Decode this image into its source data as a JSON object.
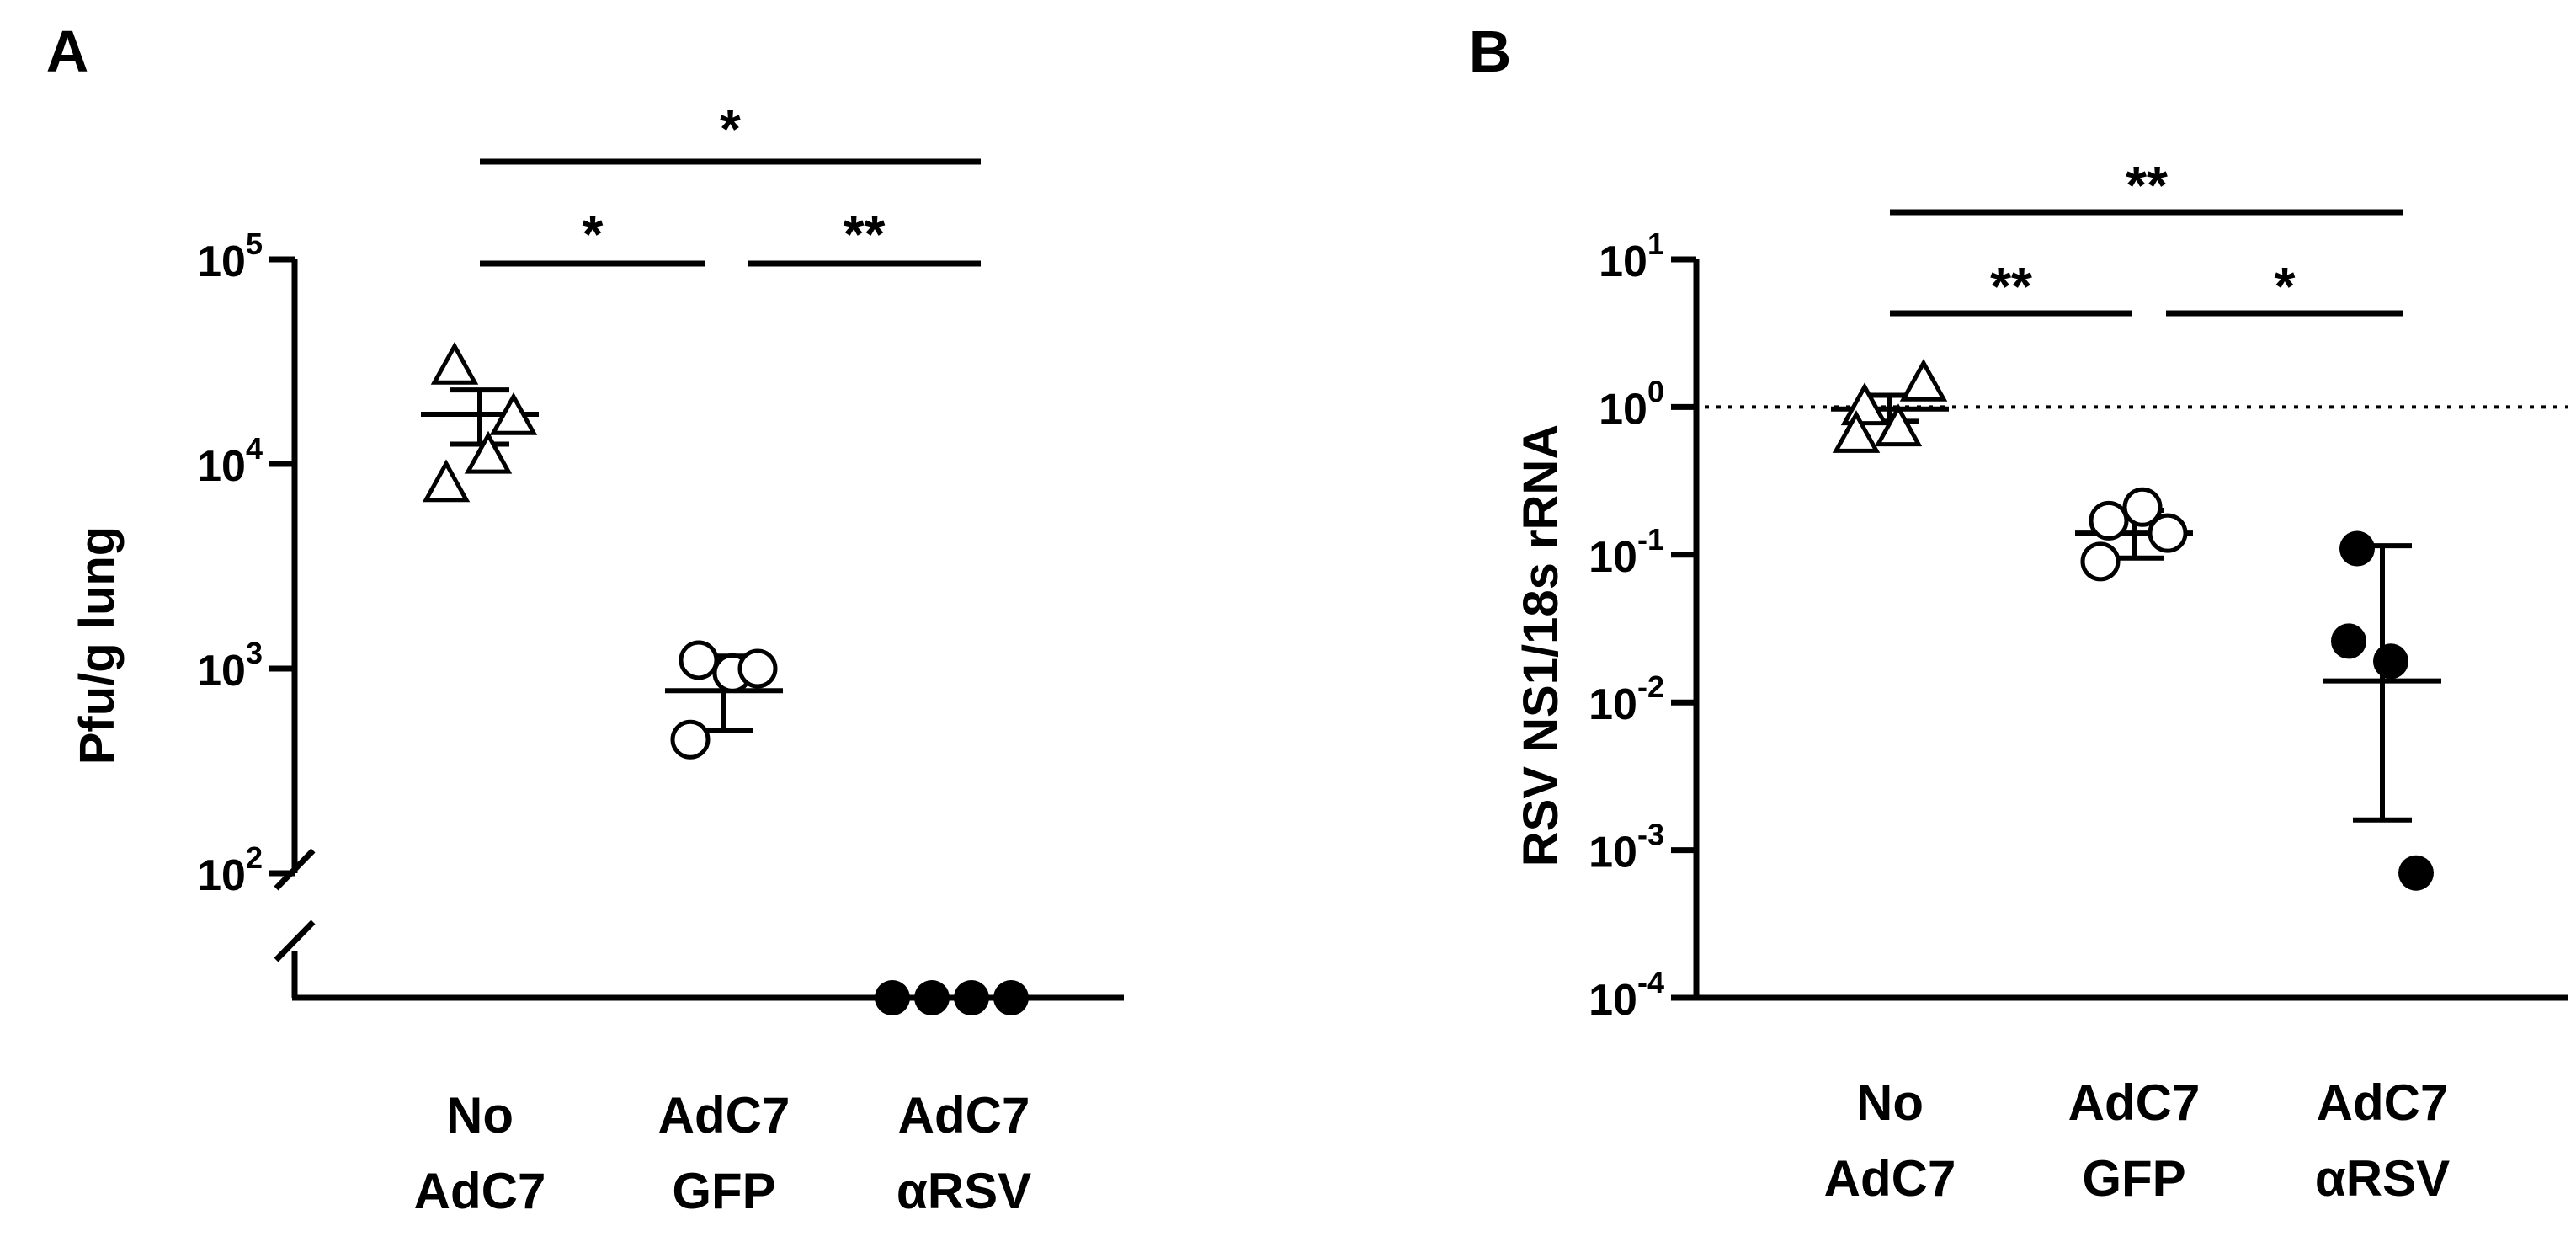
{
  "chart_data": [
    {
      "panel_label": "A",
      "type": "scatter",
      "ylabel": "Pfu/g lung",
      "yscale": "log",
      "ylim": [
        100,
        100000
      ],
      "axis_break": true,
      "y_ticks": [
        {
          "base": "10",
          "exp": "2",
          "value": 100
        },
        {
          "base": "10",
          "exp": "3",
          "value": 1000
        },
        {
          "base": "10",
          "exp": "4",
          "value": 10000
        },
        {
          "base": "10",
          "exp": "5",
          "value": 100000
        }
      ],
      "categories": [
        {
          "line1": "No",
          "line2": "AdC7"
        },
        {
          "line1": "AdC7",
          "line2": "GFP"
        },
        {
          "line1": "AdC7",
          "line2": "αRSV"
        }
      ],
      "groups": [
        {
          "marker": "open-triangle",
          "points": [
            30000,
            8000,
            11000,
            17000
          ],
          "mean": 17500,
          "err_low": 12500,
          "err_high": 23000
        },
        {
          "marker": "open-circle",
          "points": [
            1100,
            450,
            950,
            1000
          ],
          "mean": 780,
          "err_low": 500,
          "err_high": 1150
        },
        {
          "marker": "filled-circle",
          "below_break": true,
          "points": [
            null,
            null,
            null,
            null
          ]
        }
      ],
      "significance": [
        {
          "from": 0,
          "to": 2,
          "label": "*"
        },
        {
          "from": 0,
          "to": 1,
          "label": "*"
        },
        {
          "from": 1,
          "to": 2,
          "label": "**"
        }
      ]
    },
    {
      "panel_label": "B",
      "type": "scatter",
      "ylabel": "RSV NS1/18s rRNA",
      "yscale": "log",
      "ylim": [
        0.0001,
        10
      ],
      "reference_line": 1,
      "y_ticks": [
        {
          "base": "10",
          "exp": "1",
          "value": 10
        },
        {
          "base": "10",
          "exp": "0",
          "value": 1
        },
        {
          "base": "10",
          "exp": "-1",
          "value": 0.1
        },
        {
          "base": "10",
          "exp": "-2",
          "value": 0.01
        },
        {
          "base": "10",
          "exp": "-3",
          "value": 0.001
        },
        {
          "base": "10",
          "exp": "-4",
          "value": 0.0001
        }
      ],
      "categories": [
        {
          "line1": "No",
          "line2": "AdC7"
        },
        {
          "line1": "AdC7",
          "line2": "GFP"
        },
        {
          "line1": "AdC7",
          "line2": "αRSV"
        }
      ],
      "groups": [
        {
          "marker": "open-triangle",
          "points": [
            1.0,
            0.65,
            0.72,
            1.45
          ],
          "mean": 0.97,
          "err_low": 0.8,
          "err_high": 1.2
        },
        {
          "marker": "open-circle",
          "points": [
            0.17,
            0.09,
            0.21,
            0.14
          ],
          "mean": 0.14,
          "err_low": 0.095,
          "err_high": 0.2
        },
        {
          "marker": "filled-circle",
          "points": [
            0.11,
            0.026,
            0.019,
            0.0007
          ],
          "mean": 0.014,
          "err_low": 0.0016,
          "err_high": 0.115
        }
      ],
      "significance": [
        {
          "from": 0,
          "to": 2,
          "label": "**"
        },
        {
          "from": 0,
          "to": 1,
          "label": "**"
        },
        {
          "from": 1,
          "to": 2,
          "label": "*"
        }
      ]
    }
  ]
}
